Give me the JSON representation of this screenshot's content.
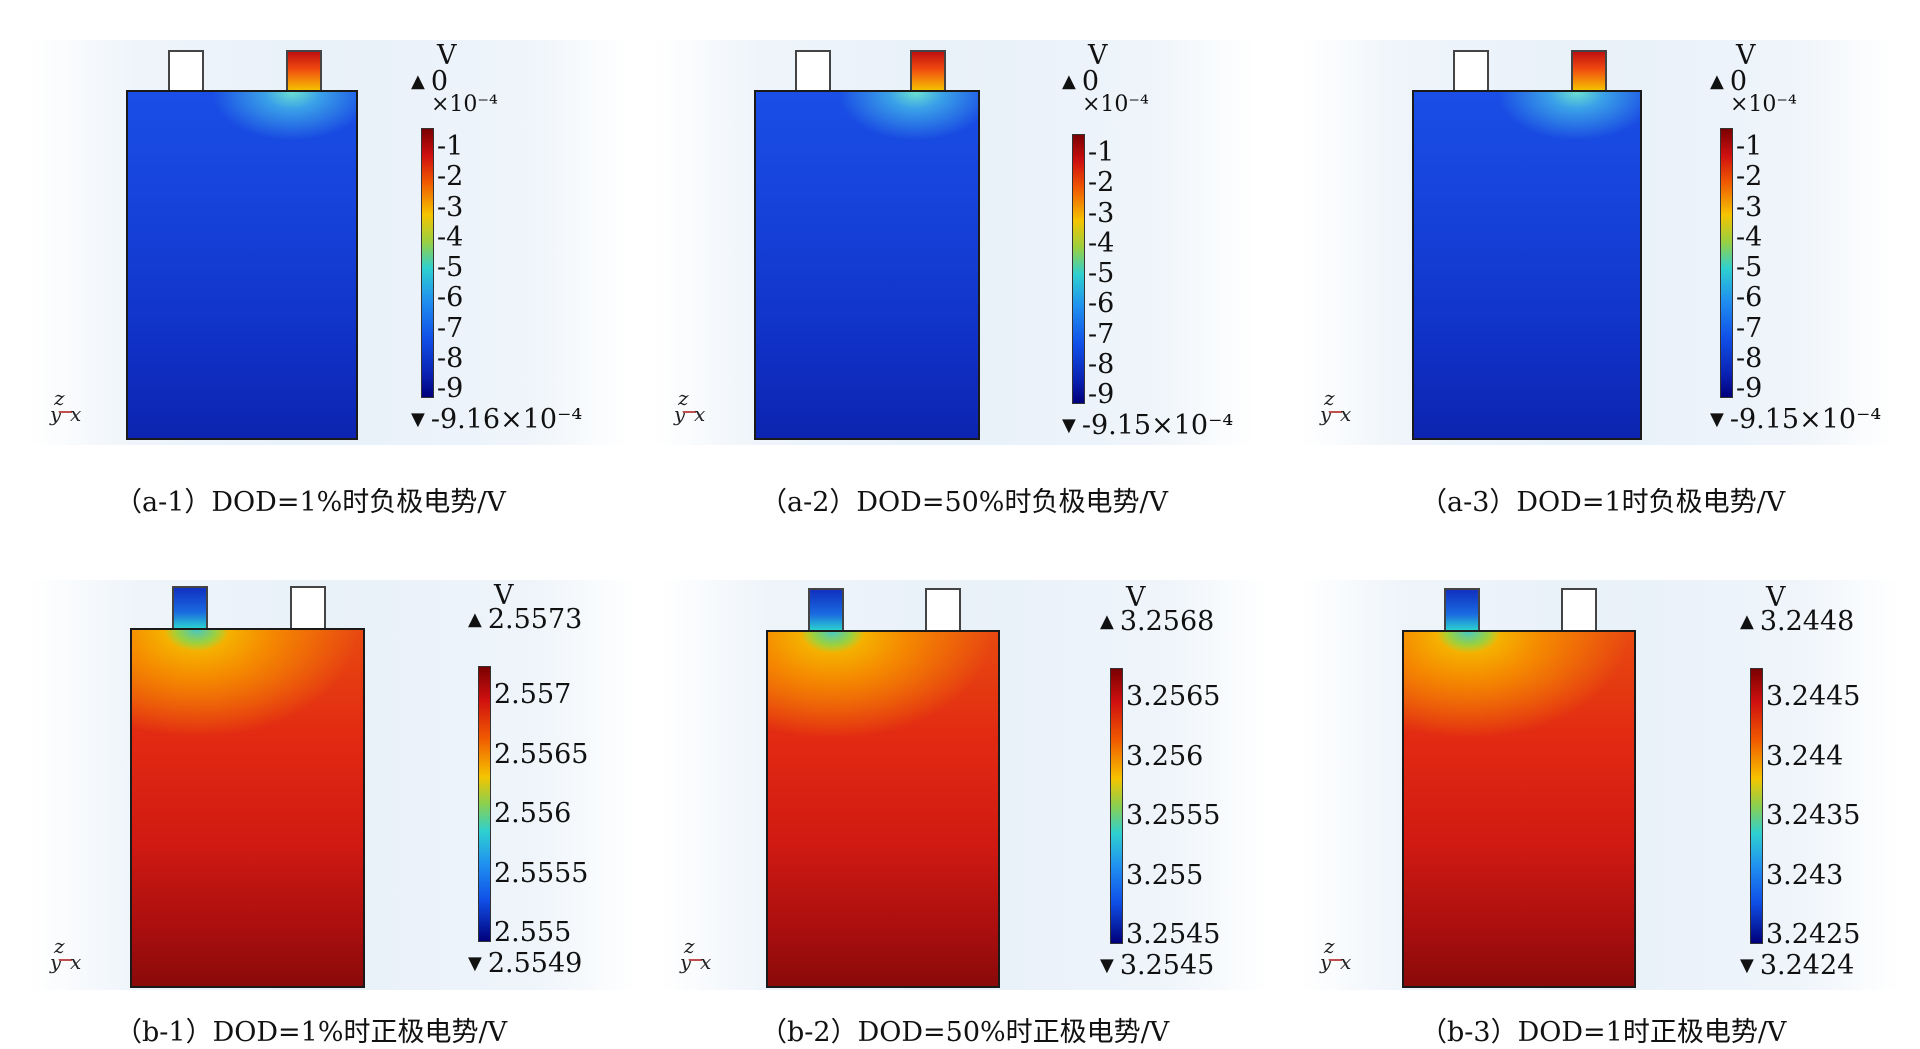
{
  "unit_label": "V",
  "panels": [
    {
      "id": "a-1",
      "caption": "（a-1）DOD=1%时负极电势/V",
      "max": "0",
      "scale": "×10⁻⁴",
      "min": "-9.16×10⁻⁴",
      "ticks": [
        "-1",
        "-2",
        "-3",
        "-4",
        "-5",
        "-6",
        "-7",
        "-8",
        "-9"
      ],
      "hot_tab": "right",
      "type": "negative"
    },
    {
      "id": "a-2",
      "caption": "（a-2）DOD=50%时负极电势/V",
      "max": "0",
      "scale": "×10⁻⁴",
      "min": "-9.15×10⁻⁴",
      "ticks": [
        "-1",
        "-2",
        "-3",
        "-4",
        "-5",
        "-6",
        "-7",
        "-8",
        "-9"
      ],
      "hot_tab": "right",
      "type": "negative"
    },
    {
      "id": "a-3",
      "caption": "（a-3）DOD=1时负极电势/V",
      "max": "0",
      "scale": "×10⁻⁴",
      "min": "-9.15×10⁻⁴",
      "ticks": [
        "-1",
        "-2",
        "-3",
        "-4",
        "-5",
        "-6",
        "-7",
        "-8",
        "-9"
      ],
      "hot_tab": "right",
      "type": "negative"
    },
    {
      "id": "b-1",
      "caption": "（b-1）DOD=1%时正极电势/V",
      "max": "2.5573",
      "scale": "",
      "min": "2.5549",
      "ticks": [
        "2.557",
        "2.5565",
        "2.556",
        "2.5555",
        "2.555"
      ],
      "hot_tab": "left",
      "type": "positive"
    },
    {
      "id": "b-2",
      "caption": "（b-2）DOD=50%时正极电势/V",
      "max": "3.2568",
      "scale": "",
      "min": "3.2545",
      "ticks": [
        "3.2565",
        "3.256",
        "3.2555",
        "3.255",
        "3.2545"
      ],
      "hot_tab": "left",
      "type": "positive"
    },
    {
      "id": "b-3",
      "caption": "（b-3）DOD=1时正极电势/V",
      "max": "3.2448",
      "scale": "",
      "min": "3.2424",
      "ticks": [
        "3.2445",
        "3.244",
        "3.2435",
        "3.243",
        "3.2425"
      ],
      "hot_tab": "left",
      "type": "positive"
    }
  ],
  "axes_labels": {
    "z": "z",
    "y": "y",
    "x": "x"
  },
  "colors": {
    "cold": "#0a2ad8",
    "hot": "#d81010",
    "tab_hot_neg": "#e03010",
    "tab_cold_pos": "#0a40d0"
  }
}
